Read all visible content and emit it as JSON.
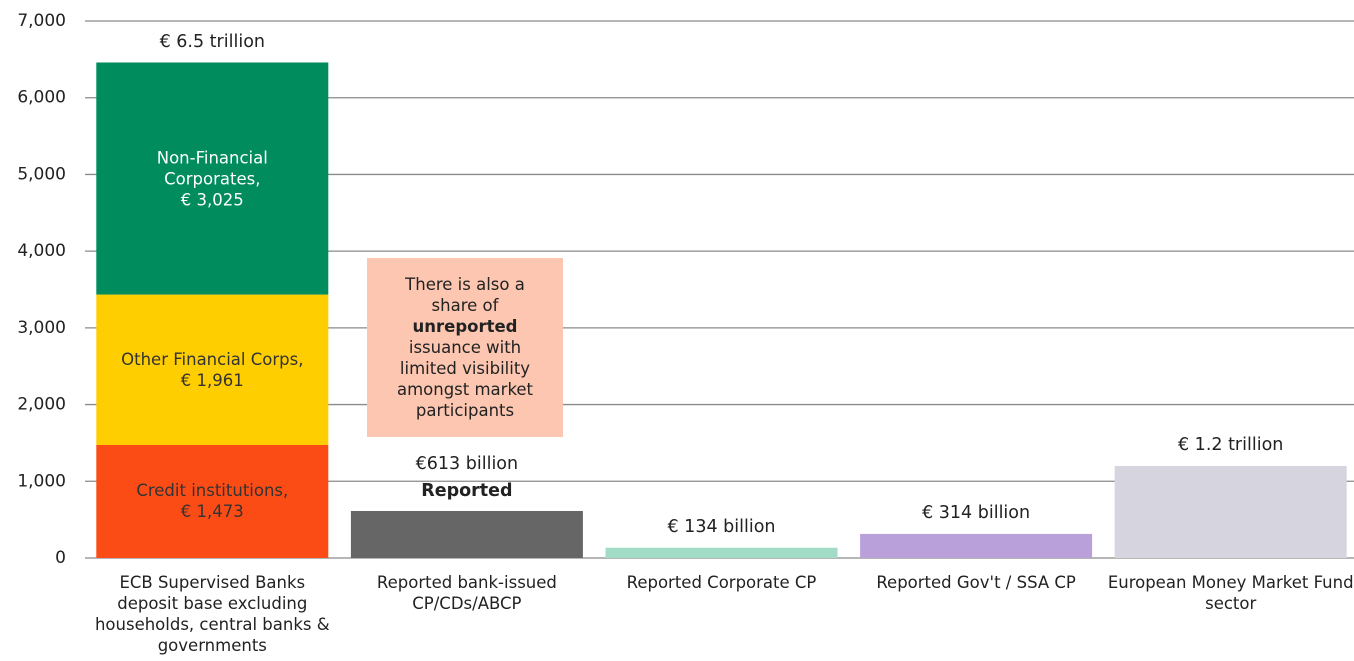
{
  "chart_data": {
    "type": "bar",
    "categories": [
      "ECB Supervised Banks deposit base excluding households, central banks & governments",
      "Reported bank-issued CP/CDs/ABCP",
      "Reported Corporate CP",
      "Reported Gov't / SSA CP",
      "European Money Market Fund sector"
    ],
    "series": [
      {
        "name": "Credit institutions,",
        "color": "#fc4c16",
        "text_color": "#333333",
        "values": [
          1473,
          null,
          null,
          null,
          null
        ],
        "value_labels": [
          "€ 1,473",
          null,
          null,
          null,
          null
        ]
      },
      {
        "name": "Other Financial Corps,",
        "color": "#ffce00",
        "text_color": "#333333",
        "values": [
          1961,
          null,
          null,
          null,
          null
        ],
        "value_labels": [
          "€ 1,961",
          null,
          null,
          null,
          null
        ]
      },
      {
        "name": "Non-Financial Corporates,",
        "color": "#008c5c",
        "text_color": "#ffffff",
        "values": [
          3025,
          null,
          null,
          null,
          null
        ],
        "value_labels": [
          "€ 3,025",
          null,
          null,
          null,
          null
        ]
      },
      {
        "colors": [
          null,
          "#666666",
          "#a2dbc6",
          "#b9a0da",
          "#d6d4df"
        ],
        "values": [
          null,
          613,
          134,
          314,
          1200
        ],
        "value_labels": [
          null,
          "€613 billion",
          "€ 134 billion",
          "€ 314 billion",
          "€ 1.2 trillion"
        ]
      }
    ],
    "stack_total_label": "€ 6.5 trillion",
    "reported_label": "Reported",
    "callout": [
      "There is also a share of",
      "unreported",
      "issuance with limited visibility amongst market participants"
    ],
    "ylim": [
      0,
      7000
    ],
    "yticks": [
      0,
      {
        "value": 1000,
        "label": "1,000"
      },
      {
        "value": 2000,
        "label": "2,000"
      },
      {
        "value": 3000,
        "label": "3,000"
      },
      {
        "value": 4000,
        "label": "4,000"
      },
      {
        "value": 5000,
        "label": "5,000"
      },
      {
        "value": 6000,
        "label": "6,000"
      },
      {
        "value": 7000,
        "label": "7,000"
      }
    ],
    "grid": true
  }
}
